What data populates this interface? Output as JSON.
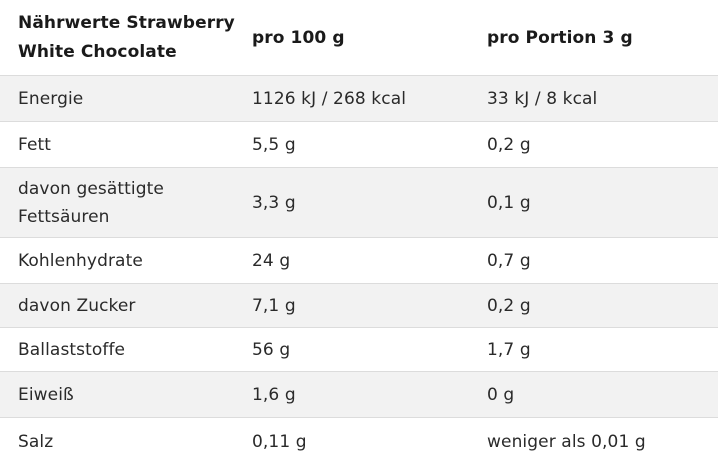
{
  "table": {
    "header": {
      "title": "Nährwerte Strawberry\nWhite Chocolate",
      "col_100g": "pro 100 g",
      "col_portion": "pro Portion 3 g"
    },
    "rows": [
      {
        "label": "Energie",
        "per100": "1126 kJ / 268 kcal",
        "portion": "33 kJ / 8 kcal"
      },
      {
        "label": "Fett",
        "per100": "5,5 g",
        "portion": "0,2 g"
      },
      {
        "label": "davon gesättigte\nFettsäuren",
        "per100": "3,3 g",
        "portion": "0,1 g"
      },
      {
        "label": "Kohlenhydrate",
        "per100": "24 g",
        "portion": "0,7 g"
      },
      {
        "label": "davon Zucker",
        "per100": "7,1 g",
        "portion": "0,2 g"
      },
      {
        "label": "Ballaststoffe",
        "per100": "56 g",
        "portion": "1,7 g"
      },
      {
        "label": "Eiweiß",
        "per100": "1,6 g",
        "portion": "0 g"
      },
      {
        "label": "Salz",
        "per100": "0,11 g",
        "portion": "weniger als 0,01 g"
      }
    ]
  }
}
